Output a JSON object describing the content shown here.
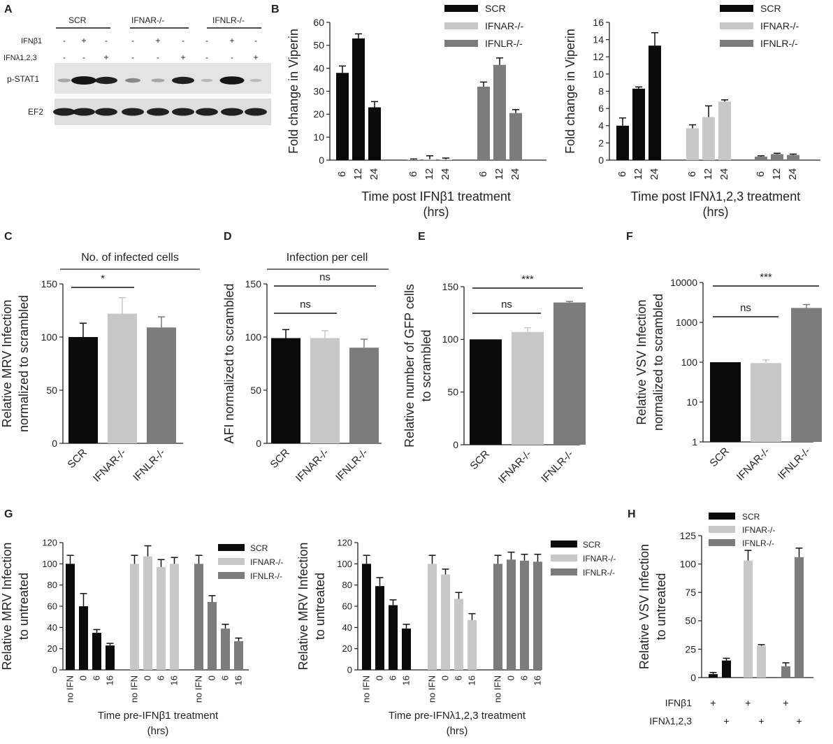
{
  "panel_letters": {
    "A": "A",
    "B": "B",
    "C": "C",
    "D": "D",
    "E": "E",
    "F": "F",
    "G": "G",
    "H": "H"
  },
  "colors": {
    "SCR": "#0b0b0b",
    "IFNAR": "#c8c8c8",
    "IFNLR": "#7c7c7c",
    "blot_bg": "#e6e6e6",
    "band": "#161616"
  },
  "blot": {
    "groups": [
      "SCR",
      "IFNAR-/-",
      "IFNLR-/-"
    ],
    "row_labels": [
      "IFNβ1",
      "IFNλ1,2,3"
    ],
    "ifnb_marks": [
      "-",
      "+",
      "-",
      "-",
      "+",
      "-",
      "-",
      "+",
      "-"
    ],
    "ifnl_marks": [
      "-",
      "-",
      "+",
      "-",
      "-",
      "+",
      "-",
      "-",
      "+"
    ],
    "band_labels": [
      "p-STAT1",
      "EF2"
    ],
    "pstat1_intensity": [
      0.15,
      1.0,
      0.8,
      0.3,
      0.15,
      0.8,
      0.05,
      0.95,
      0.05
    ],
    "ef2_intensity": [
      1,
      1,
      1,
      1,
      1,
      1,
      1,
      1,
      1
    ]
  },
  "chart_data": [
    {
      "id": "B1",
      "type": "bar",
      "title": "",
      "xlabel": "Time post IFNβ1 treatment",
      "xlabel2": "(hrs)",
      "ylabel": "Fold change in Viperin",
      "ylim": [
        0,
        60
      ],
      "yticks": [
        0,
        10,
        20,
        30,
        40,
        50,
        60
      ],
      "groups": [
        "SCR",
        "IFNAR-/-",
        "IFNLR-/-"
      ],
      "categories": [
        "6",
        "12",
        "24"
      ],
      "series": [
        {
          "name": "SCR",
          "values": [
            38,
            53,
            23
          ],
          "errors": [
            3,
            2,
            2.5
          ]
        },
        {
          "name": "IFNAR-/-",
          "values": [
            0.2,
            0.4,
            0.3
          ],
          "errors": [
            0.3,
            1.5,
            0.6
          ]
        },
        {
          "name": "IFNLR-/-",
          "values": [
            32,
            41.5,
            20.5
          ],
          "errors": [
            2,
            3,
            1.5
          ]
        }
      ],
      "legend": [
        "SCR",
        "IFNAR-/-",
        "IFNLR-/-"
      ]
    },
    {
      "id": "B2",
      "type": "bar",
      "title": "",
      "xlabel": "Time post IFNλ1,2,3 treatment",
      "xlabel2": "(hrs)",
      "ylabel": "Fold change in Viperin",
      "ylim": [
        0,
        16
      ],
      "yticks": [
        0,
        2,
        4,
        6,
        8,
        10,
        12,
        14,
        16
      ],
      "groups": [
        "SCR",
        "IFNAR-/-",
        "IFNLR-/-"
      ],
      "categories": [
        "6",
        "12",
        "24"
      ],
      "series": [
        {
          "name": "SCR",
          "values": [
            4,
            8.3,
            13.3
          ],
          "errors": [
            0.9,
            0.2,
            1.5
          ]
        },
        {
          "name": "IFNAR-/-",
          "values": [
            3.7,
            5,
            6.8
          ],
          "errors": [
            0.4,
            1.3,
            0.2
          ]
        },
        {
          "name": "IFNLR-/-",
          "values": [
            0.4,
            0.7,
            0.6
          ],
          "errors": [
            0.1,
            0.1,
            0.1
          ]
        }
      ],
      "legend": [
        "SCR",
        "IFNAR-/-",
        "IFNLR-/-"
      ]
    },
    {
      "id": "C",
      "type": "bar",
      "title": "No. of infected cells",
      "ylabel": "Relative MRV Infection",
      "ylabel2": "normalized to scrambled",
      "ylim": [
        0,
        150
      ],
      "yticks": [
        0,
        50,
        100,
        150
      ],
      "categories": [
        "SCR",
        "IFNAR-/-",
        "IFNLR-/-"
      ],
      "values": [
        100,
        122,
        109
      ],
      "errors": [
        13,
        15,
        10
      ],
      "significance": [
        {
          "from": 0,
          "to": 1,
          "label": "*"
        }
      ]
    },
    {
      "id": "D",
      "type": "bar",
      "title": "Infection per cell",
      "ylabel": "AFI normalized to scrambled",
      "ylim": [
        0,
        150
      ],
      "yticks": [
        0,
        50,
        100,
        150
      ],
      "categories": [
        "SCR",
        "IFNAR-/-",
        "IFNLR-/-"
      ],
      "values": [
        99,
        99,
        90
      ],
      "errors": [
        8,
        7,
        8
      ],
      "significance": [
        {
          "from": 0,
          "to": 1,
          "label": "ns"
        },
        {
          "from": 0,
          "to": 2,
          "label": "ns"
        }
      ]
    },
    {
      "id": "E",
      "type": "bar",
      "title": "",
      "ylabel": "Relative number of GFP cells",
      "ylabel2": "to scrambled",
      "ylim": [
        0,
        150
      ],
      "yticks": [
        0,
        50,
        100,
        150
      ],
      "categories": [
        "SCR",
        "IFNAR-/-",
        "IFNLR-/-"
      ],
      "values": [
        100,
        107,
        135
      ],
      "errors": [
        0,
        4,
        1
      ],
      "significance": [
        {
          "from": 0,
          "to": 1,
          "label": "ns"
        },
        {
          "from": 0,
          "to": 2,
          "label": "***"
        }
      ]
    },
    {
      "id": "F",
      "type": "bar",
      "title": "",
      "ylabel": "Relative VSV Infection",
      "ylabel2": "normalized to scrambled",
      "yscale": "log",
      "ylim": [
        1,
        10000
      ],
      "ytick_labels": [
        "1",
        "10",
        "100",
        "1000",
        "10000"
      ],
      "categories": [
        "SCR",
        "IFNAR-/-",
        "IFNLR-/-"
      ],
      "values": [
        100,
        95,
        2300
      ],
      "errors": [
        0,
        20,
        500
      ],
      "significance": [
        {
          "from": 0,
          "to": 1,
          "label": "ns"
        },
        {
          "from": 0,
          "to": 2,
          "label": "***"
        }
      ]
    },
    {
      "id": "G1",
      "type": "bar",
      "xlabel": "Time pre-IFNβ1 treatment",
      "xlabel2": "(hrs)",
      "ylabel": "Relative MRV Infection",
      "ylabel2": "to untreated",
      "ylim": [
        0,
        120
      ],
      "yticks": [
        0,
        20,
        40,
        60,
        80,
        100,
        120
      ],
      "categories": [
        "no IFN",
        "0",
        "6",
        "16"
      ],
      "series": [
        {
          "name": "SCR",
          "values": [
            100,
            60,
            35,
            23
          ],
          "errors": [
            8,
            12,
            3,
            2
          ]
        },
        {
          "name": "IFNAR-/-",
          "values": [
            100,
            107,
            97,
            100
          ],
          "errors": [
            8,
            10,
            7,
            6
          ]
        },
        {
          "name": "IFNLR-/-",
          "values": [
            100,
            64,
            39,
            27
          ],
          "errors": [
            8,
            6,
            4,
            3
          ]
        }
      ],
      "legend": [
        "SCR",
        "IFNAR-/-",
        "IFNLR-/-"
      ]
    },
    {
      "id": "G2",
      "type": "bar",
      "xlabel": "Time pre-IFNλ1,2,3 treatment",
      "xlabel2": "(hrs)",
      "ylabel": "Relative MRV Infection",
      "ylabel2": "to untreated",
      "ylim": [
        0,
        120
      ],
      "yticks": [
        0,
        20,
        40,
        60,
        80,
        100,
        120
      ],
      "categories": [
        "no IFN",
        "0",
        "6",
        "16"
      ],
      "series": [
        {
          "name": "SCR",
          "values": [
            100,
            79,
            61,
            39
          ],
          "errors": [
            8,
            8,
            5,
            4
          ]
        },
        {
          "name": "IFNAR-/-",
          "values": [
            100,
            90,
            67,
            47
          ],
          "errors": [
            8,
            5,
            6,
            6
          ]
        },
        {
          "name": "IFNLR-/-",
          "values": [
            100,
            104,
            103,
            102
          ],
          "errors": [
            8,
            7,
            6,
            7
          ]
        }
      ],
      "legend": [
        "SCR",
        "IFNAR-/-",
        "IFNLR-/-"
      ]
    },
    {
      "id": "H",
      "type": "bar",
      "ylabel": "Relative VSV Infection",
      "ylabel2": "to untreated",
      "ylim": [
        0,
        125
      ],
      "yticks": [
        0,
        25,
        50,
        75,
        100,
        125
      ],
      "row_labels": [
        "IFNβ1",
        "IFNλ1,2,3"
      ],
      "treat_marks": [
        "+",
        "+",
        "+",
        "+",
        "+",
        "+"
      ],
      "series": [
        {
          "name": "SCR",
          "values": [
            3,
            15
          ],
          "errors": [
            1.5,
            2
          ]
        },
        {
          "name": "IFNAR-/-",
          "values": [
            103,
            28
          ],
          "errors": [
            9,
            1
          ]
        },
        {
          "name": "IFNLR-/-",
          "values": [
            10,
            106
          ],
          "errors": [
            3,
            8
          ]
        }
      ],
      "legend": [
        "SCR",
        "IFNAR-/-",
        "IFNLR-/-"
      ]
    }
  ]
}
